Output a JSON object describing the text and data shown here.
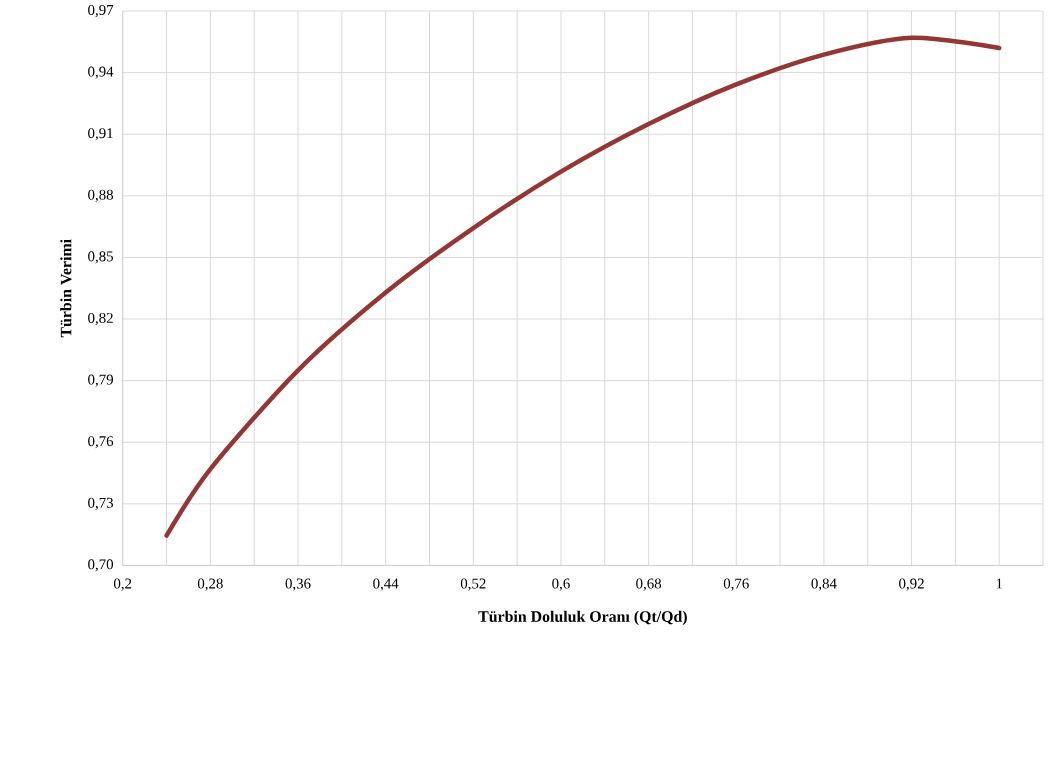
{
  "chart_data": {
    "type": "line",
    "xlabel": "Türbin Doluluk Oranı (Qt/Qd)",
    "ylabel": "Türbin Verimi",
    "x": [
      0.24,
      0.28,
      0.36,
      0.44,
      0.52,
      0.6,
      0.68,
      0.76,
      0.84,
      0.92,
      1.0
    ],
    "series": [
      {
        "color": "#943634",
        "values": [
          0.7145,
          0.7469,
          0.795,
          0.8329,
          0.8643,
          0.8918,
          0.915,
          0.9343,
          0.9488,
          0.957,
          0.952
        ]
      }
    ],
    "xlim": [
      0.2,
      1.04
    ],
    "xticks": [
      {
        "value": 0.2,
        "label": "0,2"
      },
      {
        "value": 0.24,
        "label": null
      },
      {
        "value": 0.28,
        "label": "0,28"
      },
      {
        "value": 0.32,
        "label": null
      },
      {
        "value": 0.36,
        "label": "0,36"
      },
      {
        "value": 0.4,
        "label": null
      },
      {
        "value": 0.44,
        "label": "0,44"
      },
      {
        "value": 0.48,
        "label": null
      },
      {
        "value": 0.52,
        "label": "0,52"
      },
      {
        "value": 0.56,
        "label": null
      },
      {
        "value": 0.6,
        "label": "0,6"
      },
      {
        "value": 0.64,
        "label": null
      },
      {
        "value": 0.68,
        "label": "0,68"
      },
      {
        "value": 0.72,
        "label": null
      },
      {
        "value": 0.76,
        "label": "0,76"
      },
      {
        "value": 0.8,
        "label": null
      },
      {
        "value": 0.84,
        "label": "0,84"
      },
      {
        "value": 0.88,
        "label": null
      },
      {
        "value": 0.92,
        "label": "0,92"
      },
      {
        "value": 0.96,
        "label": null
      },
      {
        "value": 1,
        "label": "1"
      },
      {
        "value": 1.04,
        "label": null
      }
    ],
    "ylim": [
      0.7,
      0.97
    ],
    "yticks": [
      {
        "value": 0.7,
        "label": "0,70"
      },
      {
        "value": 0.73,
        "label": "0,73"
      },
      {
        "value": 0.76,
        "label": "0,76"
      },
      {
        "value": 0.79,
        "label": "0,79"
      },
      {
        "value": 0.82,
        "label": "0,82"
      },
      {
        "value": 0.85,
        "label": "0,85"
      },
      {
        "value": 0.88,
        "label": "0,88"
      },
      {
        "value": 0.91,
        "label": "0,91"
      },
      {
        "value": 0.94,
        "label": "0,94"
      },
      {
        "value": 0.97,
        "label": "0,97"
      }
    ],
    "grid": true,
    "marker": "none",
    "line_style": "solid"
  }
}
